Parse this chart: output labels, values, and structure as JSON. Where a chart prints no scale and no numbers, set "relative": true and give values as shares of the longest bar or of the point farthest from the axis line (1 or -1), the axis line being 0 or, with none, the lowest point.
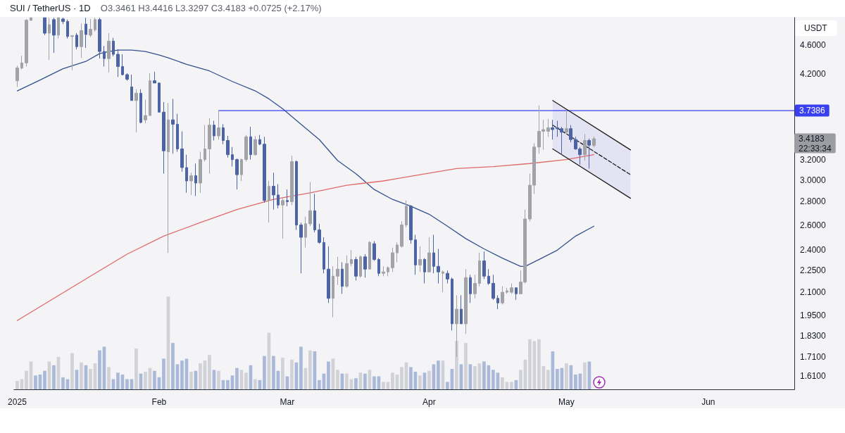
{
  "chart_data": [
    {
      "type": "candlestick",
      "title": "SUI / TetherUS · 1D",
      "subtitle": "O3.3461 H3.4416 L3.3297 C3.4183 +0.0725 (+2.17%)",
      "ylabel": "USDT",
      "log": "y",
      "xlim": [
        "2024-12-31T07:30",
        "2025-06-19T19:00"
      ],
      "xticks": [
        {
          "value": "2025-01-01",
          "label": "2025"
        },
        {
          "value": "2025-02-01",
          "label": "Feb"
        },
        {
          "value": "2025-03-01",
          "label": "Mar"
        },
        {
          "value": "2025-04-01",
          "label": "Apr"
        },
        {
          "value": "2025-05-01",
          "label": "May"
        },
        {
          "value": "2025-06-01",
          "label": "Jun"
        }
      ],
      "ylim": [
        1.543,
        5.022
      ],
      "yticks": [
        {
          "value": 1.61,
          "label": "1.6100"
        },
        {
          "value": 1.71,
          "label": "1.7100"
        },
        {
          "value": 1.83,
          "label": "1.8300"
        },
        {
          "value": 1.95,
          "label": "1.9500"
        },
        {
          "value": 2.1,
          "label": "2.1000"
        },
        {
          "value": 2.25,
          "label": "2.2500"
        },
        {
          "value": 2.4,
          "label": "2.4000"
        },
        {
          "value": 2.6,
          "label": "2.6000"
        },
        {
          "value": 2.8,
          "label": "2.8000"
        },
        {
          "value": 3,
          "label": "3.0000"
        },
        {
          "value": 3.2,
          "label": "3.2000"
        },
        {
          "value": 4.2,
          "label": "4.2000"
        },
        {
          "value": 4.6,
          "label": "4.6000"
        }
      ],
      "annotations": [
        "3.4183",
        "22:33:34"
      ],
      "series": [
        {
          "type": "line",
          "color": "#34508f",
          "x": [
            "2025-01-01",
            "2025-01-06",
            "2025-01-11",
            "2025-01-16",
            "2025-01-19",
            "2025-01-21",
            "2025-01-23",
            "2025-01-26",
            "2025-01-29",
            "2025-02-01",
            "2025-02-03",
            "2025-02-07",
            "2025-02-12",
            "2025-02-17",
            "2025-02-22",
            "2025-02-25",
            "2025-02-28",
            "2025-03-04",
            "2025-03-08",
            "2025-03-12",
            "2025-03-16",
            "2025-03-20",
            "2025-03-24",
            "2025-03-28",
            "2025-04-01",
            "2025-04-05",
            "2025-04-09",
            "2025-04-13",
            "2025-04-17",
            "2025-04-21",
            "2025-04-22",
            "2025-04-25",
            "2025-04-29",
            "2025-05-03",
            "2025-05-07"
          ],
          "values": [
            3.98,
            4.12,
            4.27,
            4.37,
            4.48,
            4.51,
            4.53,
            4.53,
            4.51,
            4.46,
            4.42,
            4.33,
            4.24,
            4.1,
            3.98,
            3.88,
            3.76,
            3.58,
            3.41,
            3.19,
            3.06,
            2.91,
            2.82,
            2.76,
            2.69,
            2.59,
            2.49,
            2.41,
            2.34,
            2.28,
            2.28,
            2.33,
            2.4,
            2.51,
            2.59
          ]
        },
        {
          "type": "line",
          "color": "#e06a6a",
          "x": [
            "2025-01-01",
            "2025-01-09",
            "2025-01-17",
            "2025-01-25",
            "2025-02-02",
            "2025-02-10",
            "2025-02-18",
            "2025-02-26",
            "2025-03-06",
            "2025-03-14",
            "2025-03-22",
            "2025-03-30",
            "2025-04-07",
            "2025-04-15",
            "2025-04-23",
            "2025-05-01",
            "2025-05-07"
          ],
          "values": [
            1.92,
            2.06,
            2.21,
            2.37,
            2.51,
            2.62,
            2.73,
            2.82,
            2.88,
            2.95,
            2.99,
            3.05,
            3.11,
            3.13,
            3.16,
            3.2,
            3.25
          ]
        },
        {
          "type": "line",
          "color": "#3a3ff0",
          "x": [
            "2025-02-14",
            "2025-06-19T19:00"
          ],
          "values": [
            3.7386,
            3.7386
          ],
          "value_labels": [
            null,
            "3.7386"
          ]
        },
        {
          "type": "line",
          "color": "#1c1c1c",
          "x": [
            "2025-04-28",
            "2025-05-15"
          ],
          "values": [
            3.86,
            3.3
          ]
        },
        {
          "type": "line",
          "color": "#1c1c1c",
          "x": [
            "2025-04-28",
            "2025-05-15"
          ],
          "values": [
            3.31,
            2.83
          ]
        },
        {
          "type": "line",
          "color": "#1c1c1c",
          "line_style": "dashed",
          "x": [
            "2025-04-28",
            "2025-05-15"
          ],
          "values": [
            3.57,
            3.05
          ],
          "lower": [
            3.31,
            2.83
          ],
          "upper": [
            3.86,
            3.3
          ]
        },
        {
          "type": "candlestick",
          "x": [
            "2025-01-01",
            "2025-01-02",
            "2025-01-03",
            "2025-01-04",
            "2025-01-07",
            "2025-01-08",
            "2025-01-09",
            "2025-01-10",
            "2025-01-11",
            "2025-01-12",
            "2025-01-13",
            "2025-01-14",
            "2025-01-15",
            "2025-01-16",
            "2025-01-17",
            "2025-01-18",
            "2025-01-19",
            "2025-01-20",
            "2025-01-21",
            "2025-01-22",
            "2025-01-23",
            "2025-01-24",
            "2025-01-25",
            "2025-01-26",
            "2025-01-27",
            "2025-01-28",
            "2025-01-29",
            "2025-01-30",
            "2025-01-31",
            "2025-02-01",
            "2025-02-02",
            "2025-02-03",
            "2025-02-04",
            "2025-02-05",
            "2025-02-06",
            "2025-02-07",
            "2025-02-08",
            "2025-02-09",
            "2025-02-10",
            "2025-02-11",
            "2025-02-12",
            "2025-02-13",
            "2025-02-14",
            "2025-02-15",
            "2025-02-16",
            "2025-02-17",
            "2025-02-18",
            "2025-02-19",
            "2025-02-20",
            "2025-02-21",
            "2025-02-22",
            "2025-02-23",
            "2025-02-24",
            "2025-02-25",
            "2025-02-26",
            "2025-02-27",
            "2025-02-28",
            "2025-03-01",
            "2025-03-02",
            "2025-03-03",
            "2025-03-04",
            "2025-03-05",
            "2025-03-06",
            "2025-03-07",
            "2025-03-08",
            "2025-03-09",
            "2025-03-10",
            "2025-03-11",
            "2025-03-12",
            "2025-03-13",
            "2025-03-14",
            "2025-03-15",
            "2025-03-16",
            "2025-03-17",
            "2025-03-18",
            "2025-03-19",
            "2025-03-20",
            "2025-03-21",
            "2025-03-22",
            "2025-03-23",
            "2025-03-24",
            "2025-03-25",
            "2025-03-26",
            "2025-03-27",
            "2025-03-28",
            "2025-03-29",
            "2025-03-30",
            "2025-03-31",
            "2025-04-01",
            "2025-04-02",
            "2025-04-03",
            "2025-04-04",
            "2025-04-05",
            "2025-04-06",
            "2025-04-07",
            "2025-04-08",
            "2025-04-09",
            "2025-04-10",
            "2025-04-11",
            "2025-04-12",
            "2025-04-13",
            "2025-04-14",
            "2025-04-15",
            "2025-04-16",
            "2025-04-17",
            "2025-04-18",
            "2025-04-19",
            "2025-04-20",
            "2025-04-21",
            "2025-04-22",
            "2025-04-23",
            "2025-04-24",
            "2025-04-25",
            "2025-04-26",
            "2025-04-27",
            "2025-04-28",
            "2025-04-29",
            "2025-04-30",
            "2025-05-01",
            "2025-05-02",
            "2025-05-03",
            "2025-05-04",
            "2025-05-05",
            "2025-05-06",
            "2025-05-07"
          ],
          "ohlc": [
            [
              4.11,
              4.31,
              4.03,
              4.28
            ],
            [
              4.28,
              4.45,
              4.26,
              4.35
            ],
            [
              4.35,
              5.0,
              4.3,
              4.98
            ],
            [
              4.98,
              5.02,
              4.97,
              5.02
            ],
            [
              5.02,
              5.02,
              4.75,
              4.78
            ],
            [
              4.78,
              5.02,
              4.39,
              4.91
            ],
            [
              4.99,
              5.02,
              4.49,
              4.75
            ],
            [
              4.75,
              5.02,
              4.7,
              5.02
            ],
            [
              5.0,
              5.02,
              4.92,
              4.96
            ],
            [
              4.96,
              4.99,
              4.7,
              4.73
            ],
            [
              4.73,
              4.75,
              4.25,
              4.74
            ],
            [
              4.75,
              4.78,
              4.54,
              4.58
            ],
            [
              4.58,
              4.93,
              4.42,
              4.82
            ],
            [
              4.92,
              5.02,
              4.56,
              4.76
            ],
            [
              4.75,
              5.0,
              4.72,
              4.84
            ],
            [
              4.83,
              5.02,
              4.8,
              4.99
            ],
            [
              4.99,
              5.02,
              4.41,
              4.51
            ],
            [
              4.51,
              4.59,
              4.3,
              4.41
            ],
            [
              4.41,
              4.78,
              4.22,
              4.66
            ],
            [
              4.66,
              4.71,
              4.44,
              4.47
            ],
            [
              4.47,
              4.54,
              4.16,
              4.3
            ],
            [
              4.3,
              4.47,
              4.18,
              4.19
            ],
            [
              4.19,
              4.21,
              4.11,
              4.13
            ],
            [
              4.03,
              4.19,
              3.86,
              3.86
            ],
            [
              3.86,
              4.0,
              3.49,
              3.95
            ],
            [
              3.95,
              4.0,
              3.59,
              3.6
            ],
            [
              3.63,
              3.87,
              3.59,
              3.68
            ],
            [
              3.68,
              4.21,
              3.68,
              4.11
            ],
            [
              4.11,
              4.23,
              4.08,
              4.08
            ],
            [
              4.08,
              4.09,
              3.72,
              3.72
            ],
            [
              3.72,
              3.84,
              3.06,
              3.29
            ],
            [
              3.28,
              3.83,
              2.38,
              3.63
            ],
            [
              3.63,
              3.88,
              3.26,
              3.58
            ],
            [
              3.58,
              3.7,
              3.28,
              3.31
            ],
            [
              3.31,
              3.5,
              3.08,
              3.12
            ],
            [
              3.12,
              3.25,
              2.88,
              2.99
            ],
            [
              2.99,
              3.07,
              2.86,
              3.04
            ],
            [
              3.04,
              3.16,
              2.85,
              2.97
            ],
            [
              2.97,
              3.28,
              2.88,
              3.2
            ],
            [
              3.2,
              3.57,
              3.18,
              3.31
            ],
            [
              3.31,
              3.65,
              3.06,
              3.57
            ],
            [
              3.57,
              3.62,
              3.4,
              3.45
            ],
            [
              3.45,
              3.74,
              3.41,
              3.54
            ],
            [
              3.54,
              3.58,
              3.36,
              3.4
            ],
            [
              3.4,
              3.45,
              3.22,
              3.25
            ],
            [
              3.25,
              3.33,
              3.13,
              3.2
            ],
            [
              3.2,
              3.21,
              2.91,
              3.05
            ],
            [
              3.05,
              3.21,
              2.99,
              3.2
            ],
            [
              3.2,
              3.46,
              3.18,
              3.44
            ],
            [
              3.44,
              3.55,
              3.2,
              3.25
            ],
            [
              3.25,
              3.45,
              3.24,
              3.41
            ],
            [
              3.41,
              3.46,
              3.35,
              3.36
            ],
            [
              3.36,
              3.44,
              2.79,
              2.81
            ],
            [
              2.81,
              2.99,
              2.62,
              2.94
            ],
            [
              2.94,
              3.07,
              2.73,
              2.86
            ],
            [
              2.86,
              2.96,
              2.74,
              2.77
            ],
            [
              2.77,
              2.84,
              2.49,
              2.81
            ],
            [
              2.81,
              2.91,
              2.76,
              2.8
            ],
            [
              2.8,
              3.24,
              2.77,
              3.18
            ],
            [
              3.18,
              3.19,
              2.56,
              2.6
            ],
            [
              2.6,
              2.62,
              2.23,
              2.5
            ],
            [
              2.5,
              2.67,
              2.42,
              2.61
            ],
            [
              2.61,
              2.98,
              2.59,
              2.72
            ],
            [
              2.72,
              2.87,
              2.54,
              2.56
            ],
            [
              2.56,
              2.61,
              2.45,
              2.46
            ],
            [
              2.46,
              2.5,
              2.23,
              2.26
            ],
            [
              2.26,
              2.43,
              2.03,
              2.06
            ],
            [
              2.06,
              2.28,
              1.94,
              2.21
            ],
            [
              2.21,
              2.35,
              2.15,
              2.26
            ],
            [
              2.26,
              2.31,
              2.09,
              2.14
            ],
            [
              2.14,
              2.36,
              2.13,
              2.3
            ],
            [
              2.3,
              2.4,
              2.28,
              2.33
            ],
            [
              2.33,
              2.35,
              2.18,
              2.21
            ],
            [
              2.21,
              2.36,
              2.2,
              2.35
            ],
            [
              2.35,
              2.37,
              2.2,
              2.26
            ],
            [
              2.26,
              2.47,
              2.26,
              2.46
            ],
            [
              2.45,
              2.47,
              2.32,
              2.33
            ],
            [
              2.33,
              2.34,
              2.21,
              2.23
            ],
            [
              2.23,
              2.28,
              2.21,
              2.24
            ],
            [
              2.24,
              2.28,
              2.21,
              2.27
            ],
            [
              2.27,
              2.42,
              2.24,
              2.38
            ],
            [
              2.38,
              2.46,
              2.31,
              2.44
            ],
            [
              2.43,
              2.63,
              2.42,
              2.6
            ],
            [
              2.6,
              2.81,
              2.58,
              2.76
            ],
            [
              2.76,
              2.77,
              2.45,
              2.48
            ],
            [
              2.48,
              2.52,
              2.22,
              2.29
            ],
            [
              2.29,
              2.43,
              2.24,
              2.33
            ],
            [
              2.33,
              2.34,
              2.16,
              2.24
            ],
            [
              2.24,
              2.5,
              2.24,
              2.38
            ],
            [
              2.38,
              2.52,
              2.23,
              2.28
            ],
            [
              2.28,
              2.41,
              2.16,
              2.24
            ],
            [
              2.23,
              2.25,
              2.1,
              2.24
            ],
            [
              2.23,
              2.25,
              2.16,
              2.19
            ],
            [
              2.19,
              2.2,
              1.86,
              1.9
            ],
            [
              1.9,
              2.08,
              1.71,
              1.99
            ],
            [
              1.99,
              2.08,
              1.9,
              1.9
            ],
            [
              1.9,
              2.26,
              1.84,
              2.2
            ],
            [
              2.2,
              2.22,
              2.03,
              2.09
            ],
            [
              2.09,
              2.22,
              2.06,
              2.16
            ],
            [
              2.16,
              2.38,
              2.14,
              2.32
            ],
            [
              2.32,
              2.39,
              2.19,
              2.21
            ],
            [
              2.21,
              2.26,
              2.15,
              2.16
            ],
            [
              2.16,
              2.22,
              2.05,
              2.06
            ],
            [
              2.06,
              2.08,
              1.99,
              2.03
            ],
            [
              2.03,
              2.14,
              2.02,
              2.1
            ],
            [
              2.1,
              2.13,
              2.09,
              2.11
            ],
            [
              2.1,
              2.16,
              2.09,
              2.13
            ],
            [
              2.13,
              2.13,
              2.05,
              2.09
            ],
            [
              2.09,
              2.25,
              2.09,
              2.17
            ],
            [
              2.17,
              2.73,
              2.16,
              2.65
            ],
            [
              2.65,
              3.06,
              2.63,
              2.95
            ],
            [
              2.95,
              3.37,
              2.87,
              3.33
            ],
            [
              3.33,
              3.8,
              3.26,
              3.5
            ],
            [
              3.5,
              3.63,
              3.3,
              3.52
            ],
            [
              3.5,
              3.64,
              3.44,
              3.54
            ],
            [
              3.54,
              3.63,
              3.41,
              3.52
            ],
            [
              3.54,
              3.62,
              3.44,
              3.53
            ],
            [
              3.53,
              3.55,
              3.25,
              3.49
            ],
            [
              3.49,
              3.74,
              3.47,
              3.53
            ],
            [
              3.53,
              3.57,
              3.38,
              3.41
            ],
            [
              3.41,
              3.44,
              3.3,
              3.31
            ],
            [
              3.31,
              3.33,
              3.15,
              3.25
            ],
            [
              3.25,
              3.47,
              3.19,
              3.4
            ],
            [
              3.4,
              3.42,
              3.11,
              3.35
            ],
            [
              3.3461,
              3.4416,
              3.3297,
              3.4183
            ]
          ],
          "colors": [
            "#a2a3a8",
            "#a2a3a8",
            "#a2a3a8",
            "#a2a3a8",
            "#4c64a4",
            "#a2a3a8",
            "#4c64a4",
            "#a2a3a8",
            "#4c64a4",
            "#4c64a4",
            "#a2a3a8",
            "#4c64a4",
            "#a2a3a8",
            "#4c64a4",
            "#a2a3a8",
            "#a2a3a8",
            "#4c64a4",
            "#4c64a4",
            "#a2a3a8",
            "#4c64a4",
            "#4c64a4",
            "#4c64a4",
            "#4c64a4",
            "#4c64a4",
            "#a2a3a8",
            "#4c64a4",
            "#a2a3a8",
            "#a2a3a8",
            "#4c64a4",
            "#4c64a4",
            "#4c64a4",
            "#a2a3a8",
            "#4c64a4",
            "#4c64a4",
            "#4c64a4",
            "#4c64a4",
            "#a2a3a8",
            "#4c64a4",
            "#a2a3a8",
            "#a2a3a8",
            "#a2a3a8",
            "#4c64a4",
            "#a2a3a8",
            "#4c64a4",
            "#4c64a4",
            "#4c64a4",
            "#4c64a4",
            "#a2a3a8",
            "#a2a3a8",
            "#4c64a4",
            "#a2a3a8",
            "#4c64a4",
            "#4c64a4",
            "#a2a3a8",
            "#4c64a4",
            "#4c64a4",
            "#a2a3a8",
            "#4c64a4",
            "#a2a3a8",
            "#4c64a4",
            "#4c64a4",
            "#a2a3a8",
            "#a2a3a8",
            "#4c64a4",
            "#4c64a4",
            "#4c64a4",
            "#4c64a4",
            "#a2a3a8",
            "#a2a3a8",
            "#4c64a4",
            "#a2a3a8",
            "#a2a3a8",
            "#4c64a4",
            "#a2a3a8",
            "#4c64a4",
            "#a2a3a8",
            "#4c64a4",
            "#4c64a4",
            "#a2a3a8",
            "#a2a3a8",
            "#a2a3a8",
            "#a2a3a8",
            "#a2a3a8",
            "#a2a3a8",
            "#4c64a4",
            "#4c64a4",
            "#a2a3a8",
            "#4c64a4",
            "#a2a3a8",
            "#4c64a4",
            "#4c64a4",
            "#a2a3a8",
            "#4c64a4",
            "#4c64a4",
            "#a2a3a8",
            "#4c64a4",
            "#a2a3a8",
            "#4c64a4",
            "#a2a3a8",
            "#a2a3a8",
            "#4c64a4",
            "#4c64a4",
            "#4c64a4",
            "#4c64a4",
            "#a2a3a8",
            "#a2a3a8",
            "#a2a3a8",
            "#4c64a4",
            "#a2a3a8",
            "#a2a3a8",
            "#a2a3a8",
            "#a2a3a8",
            "#a2a3a8",
            "#a2a3a8",
            "#a2a3a8",
            "#4c64a4",
            "#4c64a4",
            "#4c64a4",
            "#a2a3a8",
            "#4c64a4",
            "#4c64a4",
            "#4c64a4",
            "#a2a3a8",
            "#4c64a4",
            "#a2a3a8"
          ]
        }
      ]
    },
    {
      "type": "bar",
      "relative": true,
      "tick_labels": false,
      "xlim": [
        "2024-12-31T07:30",
        "2025-06-19T19:00"
      ],
      "x": [
        "2025-01-01",
        "2025-01-02",
        "2025-01-03",
        "2025-01-04",
        "2025-01-05",
        "2025-01-06",
        "2025-01-07",
        "2025-01-08",
        "2025-01-09",
        "2025-01-10",
        "2025-01-11",
        "2025-01-12",
        "2025-01-13",
        "2025-01-14",
        "2025-01-15",
        "2025-01-16",
        "2025-01-17",
        "2025-01-18",
        "2025-01-19",
        "2025-01-20",
        "2025-01-21",
        "2025-01-22",
        "2025-01-23",
        "2025-01-24",
        "2025-01-25",
        "2025-01-26",
        "2025-01-27",
        "2025-01-28",
        "2025-01-29",
        "2025-01-30",
        "2025-01-31",
        "2025-02-01",
        "2025-02-02",
        "2025-02-03",
        "2025-02-04",
        "2025-02-05",
        "2025-02-06",
        "2025-02-07",
        "2025-02-08",
        "2025-02-09",
        "2025-02-10",
        "2025-02-11",
        "2025-02-12",
        "2025-02-13",
        "2025-02-14",
        "2025-02-15",
        "2025-02-16",
        "2025-02-17",
        "2025-02-18",
        "2025-02-19",
        "2025-02-20",
        "2025-02-21",
        "2025-02-22",
        "2025-02-23",
        "2025-02-24",
        "2025-02-25",
        "2025-02-26",
        "2025-02-27",
        "2025-02-28",
        "2025-03-01",
        "2025-03-02",
        "2025-03-03",
        "2025-03-04",
        "2025-03-05",
        "2025-03-06",
        "2025-03-07",
        "2025-03-08",
        "2025-03-09",
        "2025-03-10",
        "2025-03-11",
        "2025-03-12",
        "2025-03-13",
        "2025-03-14",
        "2025-03-15",
        "2025-03-16",
        "2025-03-17",
        "2025-03-18",
        "2025-03-19",
        "2025-03-20",
        "2025-03-21",
        "2025-03-22",
        "2025-03-23",
        "2025-03-24",
        "2025-03-25",
        "2025-03-26",
        "2025-03-27",
        "2025-03-28",
        "2025-03-29",
        "2025-03-30",
        "2025-03-31",
        "2025-04-01",
        "2025-04-02",
        "2025-04-03",
        "2025-04-04",
        "2025-04-05",
        "2025-04-06",
        "2025-04-07",
        "2025-04-08",
        "2025-04-09",
        "2025-04-10",
        "2025-04-11",
        "2025-04-12",
        "2025-04-13",
        "2025-04-14",
        "2025-04-15",
        "2025-04-16",
        "2025-04-17",
        "2025-04-18",
        "2025-04-19",
        "2025-04-20",
        "2025-04-21",
        "2025-04-22",
        "2025-04-23",
        "2025-04-24",
        "2025-04-25",
        "2025-04-26",
        "2025-04-27",
        "2025-04-28",
        "2025-04-29",
        "2025-04-30",
        "2025-05-01",
        "2025-05-02",
        "2025-05-03",
        "2025-05-04",
        "2025-05-05",
        "2025-05-06"
      ],
      "values": [
        0.09,
        0.11,
        0.2,
        0.3,
        0.15,
        0.16,
        0.2,
        0.3,
        0.26,
        0.35,
        0.13,
        0.11,
        0.39,
        0.21,
        0.29,
        0.26,
        0.22,
        0.28,
        0.42,
        0.46,
        0.24,
        0.11,
        0.18,
        0.16,
        0.11,
        0.11,
        0.44,
        0.17,
        0.19,
        0.23,
        0.2,
        0.13,
        0.33,
        1,
        0.5,
        0.27,
        0.31,
        0.33,
        0.19,
        0.2,
        0.28,
        0.31,
        0.37,
        0.21,
        0.2,
        0.1,
        0.1,
        0.15,
        0.23,
        0.21,
        0.18,
        0.26,
        0.11,
        0.1,
        0.36,
        0.61,
        0.36,
        0.2,
        0.34,
        0.14,
        0.32,
        0.29,
        0.46,
        0.23,
        0.42,
        0.41,
        0.1,
        0.17,
        0.3,
        0.33,
        0.21,
        0.17,
        0.17,
        0.11,
        0.12,
        0.18,
        0.17,
        0.21,
        0.14,
        0.14,
        0.08,
        0.08,
        0.18,
        0.16,
        0.24,
        0.29,
        0.24,
        0.19,
        0.15,
        0.18,
        0.2,
        0.27,
        0.31,
        0.31,
        0.08,
        0.22,
        0.52,
        0.27,
        0.5,
        0.27,
        0.25,
        0.28,
        0.3,
        0.26,
        0.21,
        0.18,
        0.13,
        0.08,
        0.08,
        0.1,
        0.21,
        0.32,
        0.54,
        0.52,
        0.54,
        0.25,
        0.21,
        0.41,
        0.22,
        0.23,
        0.28,
        0.26,
        0.16,
        0.17,
        0.29,
        0.3
      ],
      "colors": [
        "#d0d2d8",
        "#d0d2d8",
        "#d0d2d8",
        "#d0d2d8",
        "#aab8da",
        "#aab8da",
        "#aab8da",
        "#d0d2d8",
        "#aab8da",
        "#d0d2d8",
        "#aab8da",
        "#aab8da",
        "#d0d2d8",
        "#aab8da",
        "#d0d2d8",
        "#aab8da",
        "#d0d2d8",
        "#d0d2d8",
        "#aab8da",
        "#aab8da",
        "#d0d2d8",
        "#aab8da",
        "#aab8da",
        "#aab8da",
        "#aab8da",
        "#aab8da",
        "#d0d2d8",
        "#aab8da",
        "#d0d2d8",
        "#d0d2d8",
        "#aab8da",
        "#aab8da",
        "#aab8da",
        "#d0d2d8",
        "#aab8da",
        "#aab8da",
        "#aab8da",
        "#aab8da",
        "#d0d2d8",
        "#aab8da",
        "#d0d2d8",
        "#d0d2d8",
        "#d0d2d8",
        "#aab8da",
        "#d0d2d8",
        "#aab8da",
        "#aab8da",
        "#aab8da",
        "#aab8da",
        "#d0d2d8",
        "#d0d2d8",
        "#aab8da",
        "#d0d2d8",
        "#aab8da",
        "#aab8da",
        "#d0d2d8",
        "#aab8da",
        "#aab8da",
        "#d0d2d8",
        "#aab8da",
        "#d0d2d8",
        "#aab8da",
        "#aab8da",
        "#d0d2d8",
        "#d0d2d8",
        "#aab8da",
        "#aab8da",
        "#aab8da",
        "#aab8da",
        "#d0d2d8",
        "#d0d2d8",
        "#aab8da",
        "#d0d2d8",
        "#d0d2d8",
        "#aab8da",
        "#d0d2d8",
        "#aab8da",
        "#d0d2d8",
        "#aab8da",
        "#aab8da",
        "#d0d2d8",
        "#d0d2d8",
        "#d0d2d8",
        "#d0d2d8",
        "#d0d2d8",
        "#d0d2d8",
        "#aab8da",
        "#aab8da",
        "#d0d2d8",
        "#aab8da",
        "#d0d2d8",
        "#aab8da",
        "#aab8da",
        "#d0d2d8",
        "#aab8da",
        "#aab8da",
        "#d0d2d8",
        "#aab8da",
        "#d0d2d8",
        "#aab8da",
        "#d0d2d8",
        "#d0d2d8",
        "#aab8da",
        "#aab8da",
        "#aab8da",
        "#aab8da",
        "#d0d2d8",
        "#d0d2d8",
        "#d0d2d8",
        "#aab8da",
        "#d0d2d8",
        "#d0d2d8",
        "#d0d2d8",
        "#d0d2d8",
        "#d0d2d8",
        "#d0d2d8",
        "#d0d2d8",
        "#aab8da",
        "#aab8da",
        "#aab8da",
        "#d0d2d8",
        "#aab8da",
        "#aab8da",
        "#aab8da",
        "#d0d2d8",
        "#aab8da"
      ]
    }
  ]
}
